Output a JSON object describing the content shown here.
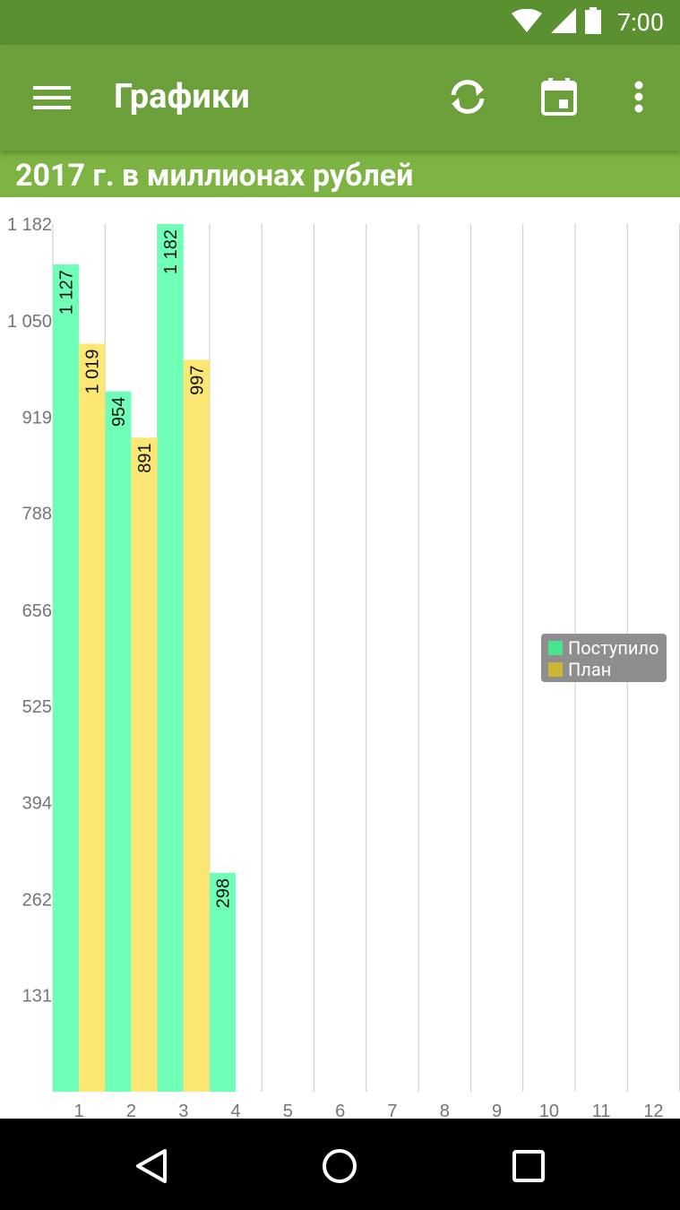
{
  "status_bar": {
    "time": "7:00"
  },
  "app_bar": {
    "title": "Графики",
    "icons": [
      "menu-icon",
      "refresh-icon",
      "calendar-icon",
      "more-vert-icon"
    ]
  },
  "subtitle": "2017 г. в миллионах рублей",
  "colors": {
    "status_bar": "#5b9031",
    "app_bar": "#6a9f39",
    "subtitle_bar": "#7cb342",
    "series_received": "#70ffb6",
    "series_plan": "#fde774",
    "legend_received": "#49e48c",
    "legend_plan": "#cbb734"
  },
  "chart_data": {
    "type": "bar",
    "categories": [
      "1",
      "2",
      "3",
      "4",
      "5",
      "6",
      "7",
      "8",
      "9",
      "10",
      "11",
      "12"
    ],
    "series": [
      {
        "name": "Поступило",
        "values": [
          1127,
          954,
          1182,
          298,
          null,
          null,
          null,
          null,
          null,
          null,
          null,
          null
        ],
        "labels": [
          "1 127",
          "954",
          "1 182",
          "298"
        ]
      },
      {
        "name": "План",
        "values": [
          1019,
          891,
          997,
          null,
          null,
          null,
          null,
          null,
          null,
          null,
          null,
          null
        ],
        "labels": [
          "1 019",
          "891",
          "997"
        ]
      }
    ],
    "ylim": [
      0,
      1182
    ],
    "y_ticks": [
      131,
      262,
      394,
      525,
      656,
      788,
      919,
      1050,
      1182
    ],
    "y_tick_labels": [
      "131",
      "262",
      "394",
      "525",
      "656",
      "788",
      "919",
      "1 050",
      "1 182"
    ],
    "legend_position": "right-middle",
    "grid": "vertical"
  }
}
